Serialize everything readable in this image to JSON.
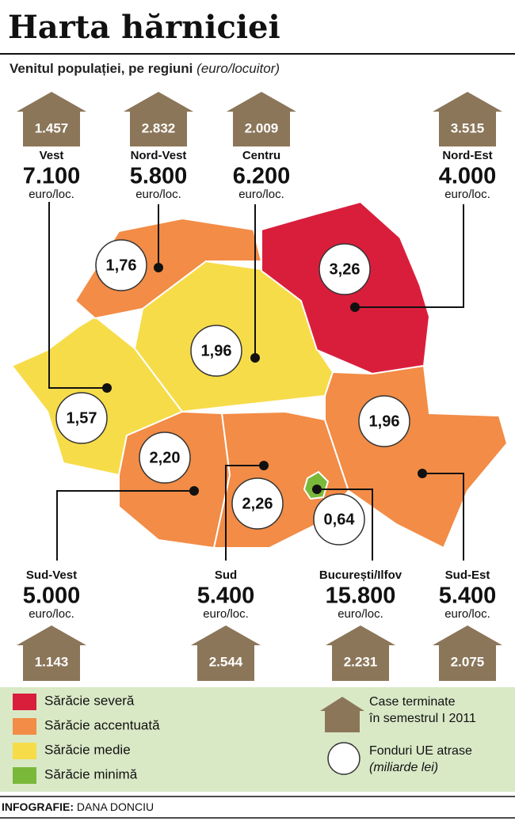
{
  "header": {
    "title": "Harta hărniciei",
    "subtitle": "Venitul populației, pe regiuni",
    "subtitle_unit": "(euro/locuitor)"
  },
  "regions": [
    {
      "name": "Vest",
      "income": "7.100",
      "unit": "euro/loc.",
      "houses": "1.457",
      "funds": "1,57",
      "color": "#f7dc4a"
    },
    {
      "name": "Nord-Vest",
      "income": "5.800",
      "unit": "euro/loc.",
      "houses": "2.832",
      "funds": "1,76",
      "color": "#f28c46"
    },
    {
      "name": "Centru",
      "income": "6.200",
      "unit": "euro/loc.",
      "houses": "2.009",
      "funds": "1,96",
      "color": "#f7dc4a"
    },
    {
      "name": "Nord-Est",
      "income": "4.000",
      "unit": "euro/loc.",
      "houses": "3.515",
      "funds": "3,26",
      "color": "#d91e3c"
    },
    {
      "name": "Sud-Vest",
      "income": "5.000",
      "unit": "euro/loc.",
      "houses": "1.143",
      "funds": "2,20",
      "color": "#f28c46"
    },
    {
      "name": "Sud",
      "income": "5.400",
      "unit": "euro/loc.",
      "houses": "2.544",
      "funds": "2,26",
      "color": "#f28c46"
    },
    {
      "name": "București/Ilfov",
      "income": "15.800",
      "unit": "euro/loc.",
      "houses": "2.231",
      "funds": "0,64",
      "color": "#7ab83a"
    },
    {
      "name": "Sud-Est",
      "income": "5.400",
      "unit": "euro/loc.",
      "houses": "2.075",
      "funds": "1,96",
      "color": "#f28c46"
    }
  ],
  "legend": {
    "levels": [
      {
        "label": "Sărăcie severă",
        "color": "#d91e3c"
      },
      {
        "label": "Sărăcie accentuată",
        "color": "#f28c46"
      },
      {
        "label": "Sărăcie medie",
        "color": "#f7dc4a"
      },
      {
        "label": "Sărăcie minimă",
        "color": "#7ab83a"
      }
    ],
    "houses": [
      "Case terminate",
      "în semestrul I 2011"
    ],
    "funds": [
      "Fonduri UE atrase",
      "(miliarde lei)"
    ]
  },
  "credit": {
    "label": "INFOGRAFIE:",
    "author": "DANA DONCIU"
  }
}
